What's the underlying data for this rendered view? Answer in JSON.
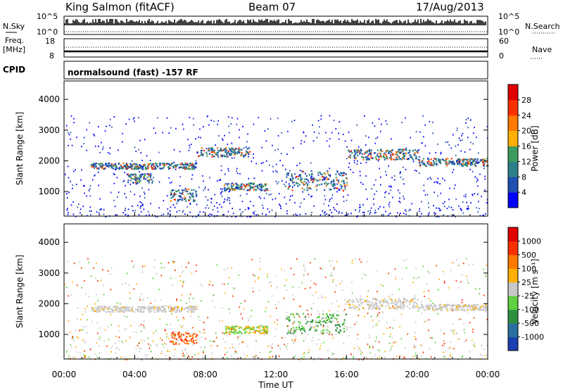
{
  "header": {
    "station": "King Salmon (fitACF)",
    "beam": "Beam 07",
    "date": "17/Aug/2013"
  },
  "status_panel": {
    "n_sky_label": "N.Sky",
    "n_search_label": "N.Search",
    "n_scale_top": "10^5",
    "n_scale_bottom": "10^0",
    "freq_label": "Freq.",
    "freq_unit": "[MHz]",
    "freq_ticks": [
      "18",
      "8"
    ],
    "nave_label": "Nave",
    "nave_ticks": [
      "60",
      "0"
    ],
    "cpid_label": "CPID",
    "cpid_value": "normalsound (fast) -157 RF"
  },
  "chart_data": [
    {
      "type": "heatmap",
      "name": "power",
      "ylabel": "Slant Range [km]",
      "xlabel": "",
      "ylim": [
        200,
        4600
      ],
      "yticks": [
        "1000",
        "2000",
        "3000",
        "4000"
      ],
      "colorbar": {
        "label": "Power [dB]",
        "ticks": [
          "28",
          "24",
          "20",
          "16",
          "12",
          "8",
          "4"
        ],
        "colors": [
          "#0000ff",
          "#1f4fb0",
          "#2e7f8a",
          "#3e9a5f",
          "#ffb000",
          "#ff7a00",
          "#ff3000",
          "#e00000"
        ]
      },
      "bands": [
        {
          "x": [
            1.5,
            7.5
          ],
          "y": [
            1750,
            1950
          ]
        },
        {
          "x": [
            3.5,
            5.0
          ],
          "y": [
            1300,
            1600
          ]
        },
        {
          "x": [
            6.0,
            7.5
          ],
          "y": [
            700,
            1100
          ]
        },
        {
          "x": [
            7.5,
            10.5
          ],
          "y": [
            2150,
            2450
          ]
        },
        {
          "x": [
            9.0,
            11.5
          ],
          "y": [
            1050,
            1300
          ]
        },
        {
          "x": [
            12.5,
            16.0
          ],
          "y": [
            1050,
            1700
          ]
        },
        {
          "x": [
            16.0,
            20.0
          ],
          "y": [
            2050,
            2400
          ]
        },
        {
          "x": [
            20.0,
            24.0
          ],
          "y": [
            1850,
            2100
          ]
        }
      ]
    },
    {
      "type": "heatmap",
      "name": "velocity",
      "ylabel": "Slant Range [km]",
      "xlabel": "Time UT",
      "ylim": [
        200,
        4600
      ],
      "yticks": [
        "1000",
        "2000",
        "3000",
        "4000"
      ],
      "xticks": [
        "00:00",
        "04:00",
        "08:00",
        "12:00",
        "16:00",
        "20:00",
        "00:00"
      ],
      "xlim": [
        0,
        24
      ],
      "colorbar": {
        "label": "Velocity [m s⁻¹]",
        "ticks": [
          "1000",
          "500",
          "100",
          "25",
          "-25",
          "-100",
          "-500",
          "-1000"
        ],
        "colors": [
          "#1b3fb0",
          "#2a6fa0",
          "#2e8f40",
          "#5fd040",
          "#c8c8c8",
          "#ffb000",
          "#ff7a00",
          "#ff3000",
          "#e00000"
        ]
      },
      "bands": [
        {
          "x": [
            1.5,
            7.5
          ],
          "y": [
            1750,
            1950
          ]
        },
        {
          "x": [
            6.0,
            7.5
          ],
          "y": [
            700,
            1100
          ]
        },
        {
          "x": [
            9.0,
            11.5
          ],
          "y": [
            1050,
            1300
          ]
        },
        {
          "x": [
            12.5,
            16.0
          ],
          "y": [
            1050,
            1700
          ]
        },
        {
          "x": [
            16.0,
            20.0
          ],
          "y": [
            1850,
            2200
          ]
        },
        {
          "x": [
            20.0,
            24.0
          ],
          "y": [
            1800,
            2000
          ]
        }
      ]
    }
  ]
}
